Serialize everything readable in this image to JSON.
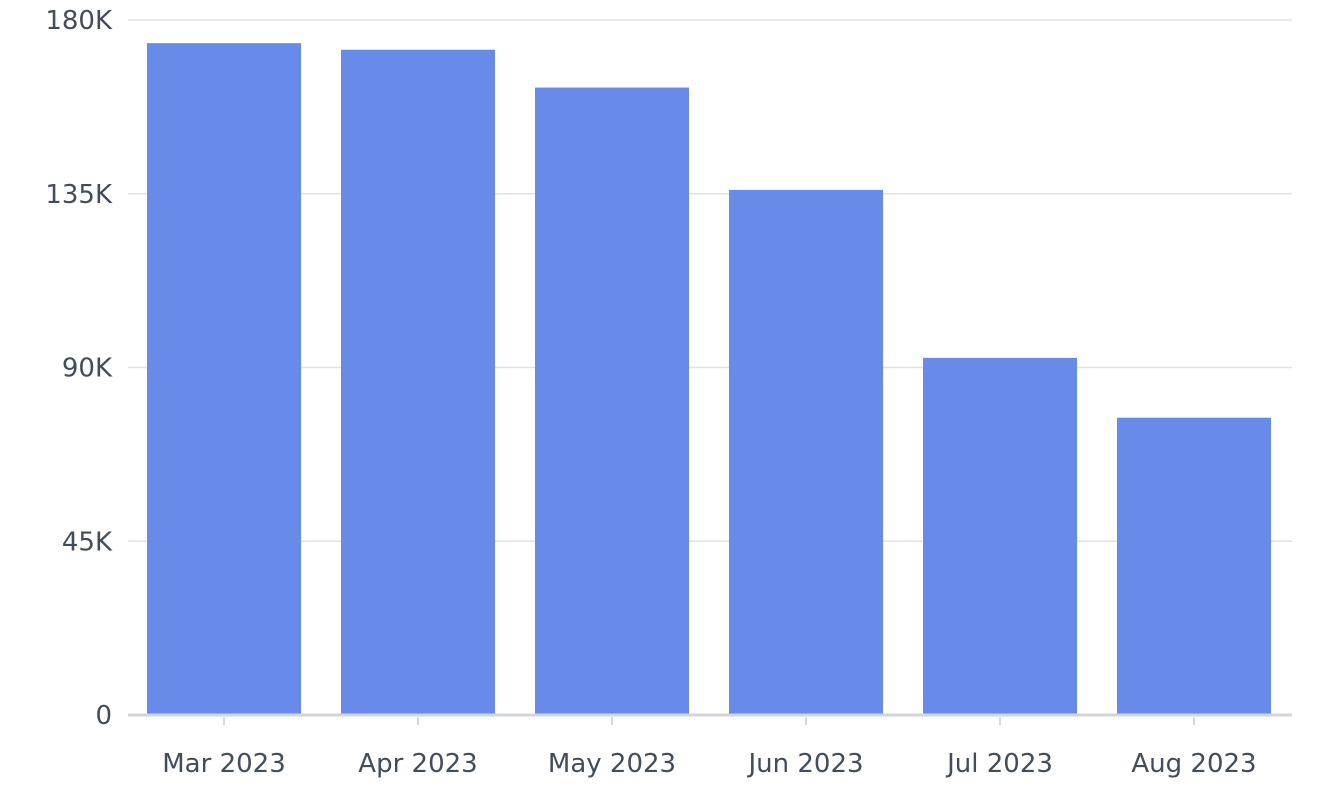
{
  "chart_data": {
    "type": "bar",
    "categories": [
      "Mar 2023",
      "Apr 2023",
      "May 2023",
      "Jun 2023",
      "Jul 2023",
      "Aug 2023"
    ],
    "series": [
      {
        "values": [
          174000,
          172300,
          162500,
          136000,
          92500,
          77000
        ],
        "color": "#688ae8"
      }
    ],
    "yticks": [
      0,
      45000,
      90000,
      135000,
      180000
    ],
    "ytick_labels": [
      "0",
      "45K",
      "90K",
      "135K",
      "180K"
    ],
    "ylim": [
      0,
      180000
    ],
    "grid": true,
    "legend": "none"
  }
}
